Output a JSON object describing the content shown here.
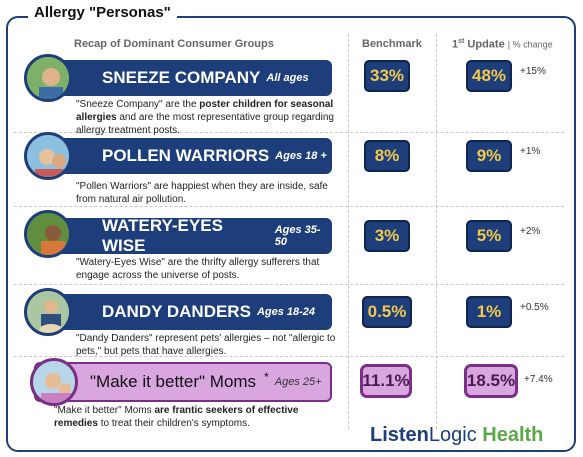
{
  "title": "Allergy \"Personas\"",
  "headers": {
    "recap": "Recap of Dominant Consumer Groups",
    "benchmark": "Benchmark",
    "update_main": "1",
    "update_sup": "st",
    "update_rest": " Update",
    "pct_change": "| % change"
  },
  "personas": [
    {
      "name": "SNEEZE COMPANY",
      "ages": "All ages",
      "desc_a": "\"Sneeze Company\" are the ",
      "desc_b": "poster children for seasonal allergies",
      "desc_c": " and are the most representative group regarding allergy treatment posts.",
      "benchmark": "33%",
      "update": "48%",
      "change": "+15%"
    },
    {
      "name": "POLLEN WARRIORS",
      "ages": "Ages 18 +",
      "desc_a": "\"Pollen Warriors\" are happiest when they are inside, safe from natural air pollution.",
      "benchmark": "8%",
      "update": "9%",
      "change": "+1%"
    },
    {
      "name": "WATERY-EYES WISE",
      "ages": "Ages 35-50",
      "desc_a": "\"Watery-Eyes Wise\" are the thrifty allergy sufferers that engage across the universe of posts.",
      "benchmark": "3%",
      "update": "5%",
      "change": "+2%"
    },
    {
      "name": "DANDY DANDERS",
      "ages": "Ages 18-24",
      "desc_a": "\"Dandy Danders\" represent pets' allergies – not \"allergic to pets,\" but pets that have allergies.",
      "benchmark": "0.5%",
      "update": "1%",
      "change": "+0.5%"
    },
    {
      "name": "\"Make it better\" Moms",
      "star": "*",
      "ages": "Ages 25+",
      "desc_a": "\"Make it better\" Moms ",
      "desc_b": "are frantic seekers of effective remedies",
      "desc_c": " to treat their children's symptoms.",
      "benchmark": "11.1%",
      "update": "18.5%",
      "change": "+7.4%"
    }
  ],
  "logo": {
    "part1": "Listen",
    "part2": "Logic",
    "part3": " Health"
  },
  "colors": {
    "navy": "#1d3e7a",
    "gold": "#f2c94c",
    "purple": "#7a2e86",
    "lavender": "#d9a6e0",
    "green": "#5aa845"
  },
  "icons": [
    "person-photo-icon"
  ]
}
